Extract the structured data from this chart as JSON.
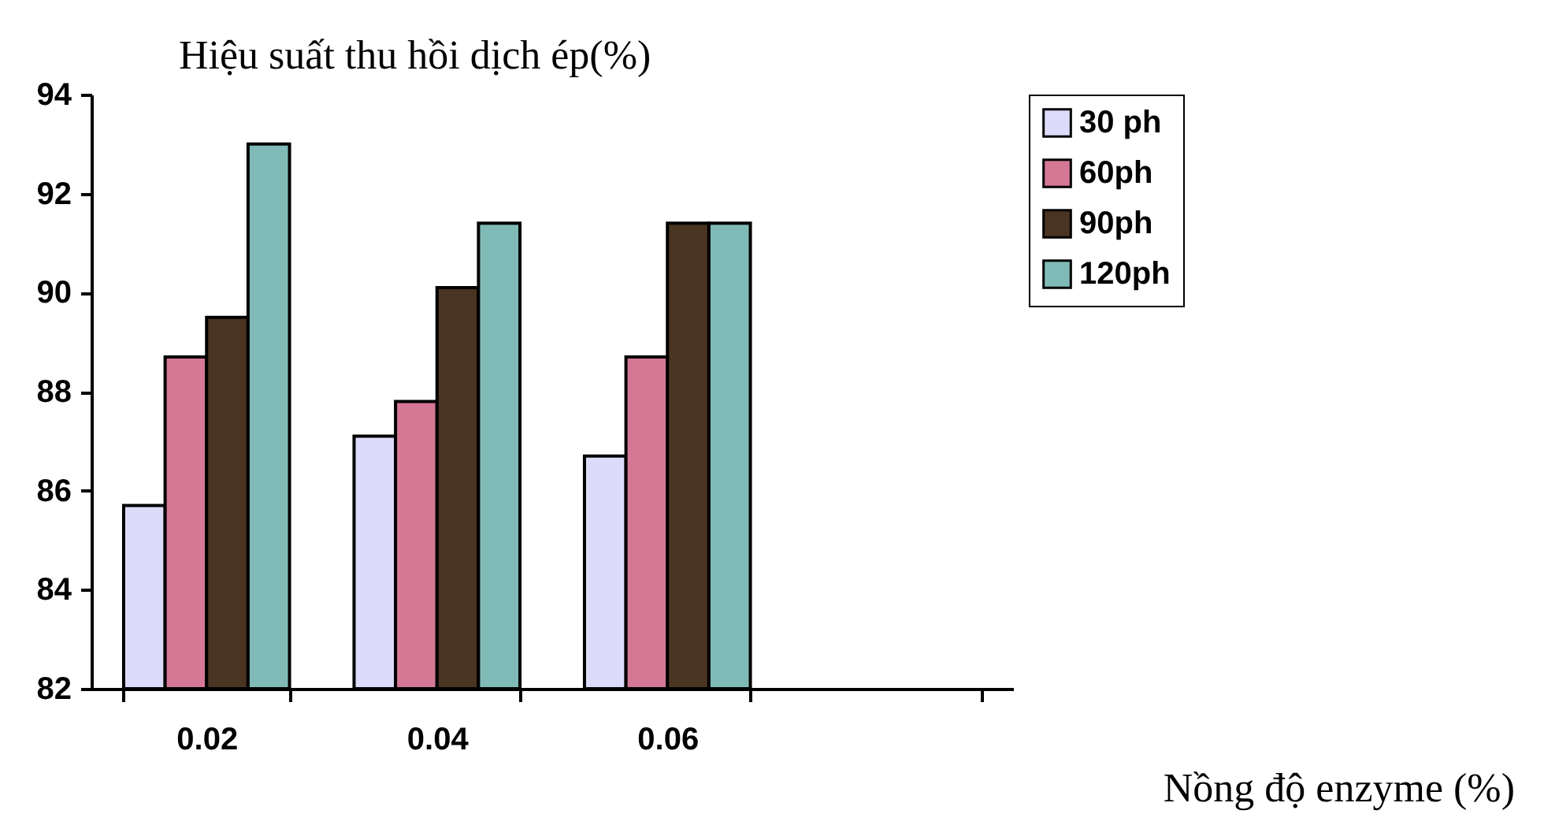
{
  "chart_data": {
    "type": "bar",
    "ylabel": "Hiệu suất thu hồi dịch ép(%)",
    "xlabel": "Nồng độ enzyme (%)",
    "categories": [
      "0.02",
      "0.04",
      "0.06",
      null
    ],
    "series": [
      {
        "name": "30 ph",
        "color": "#dcdcfa",
        "values": [
          85.7,
          87.1,
          86.7,
          null
        ]
      },
      {
        "name": "60ph",
        "color": "#d47896",
        "values": [
          88.7,
          87.8,
          88.7,
          null
        ]
      },
      {
        "name": "90ph",
        "color": "#4a3422",
        "values": [
          89.5,
          90.1,
          91.4,
          null
        ]
      },
      {
        "name": "120ph",
        "color": "#80bab6",
        "values": [
          93.0,
          91.4,
          91.4,
          null
        ]
      }
    ],
    "ylim": [
      82,
      94
    ],
    "yticks": [
      82,
      84,
      86,
      88,
      90,
      92,
      94
    ],
    "grid": false,
    "legend": "right"
  }
}
